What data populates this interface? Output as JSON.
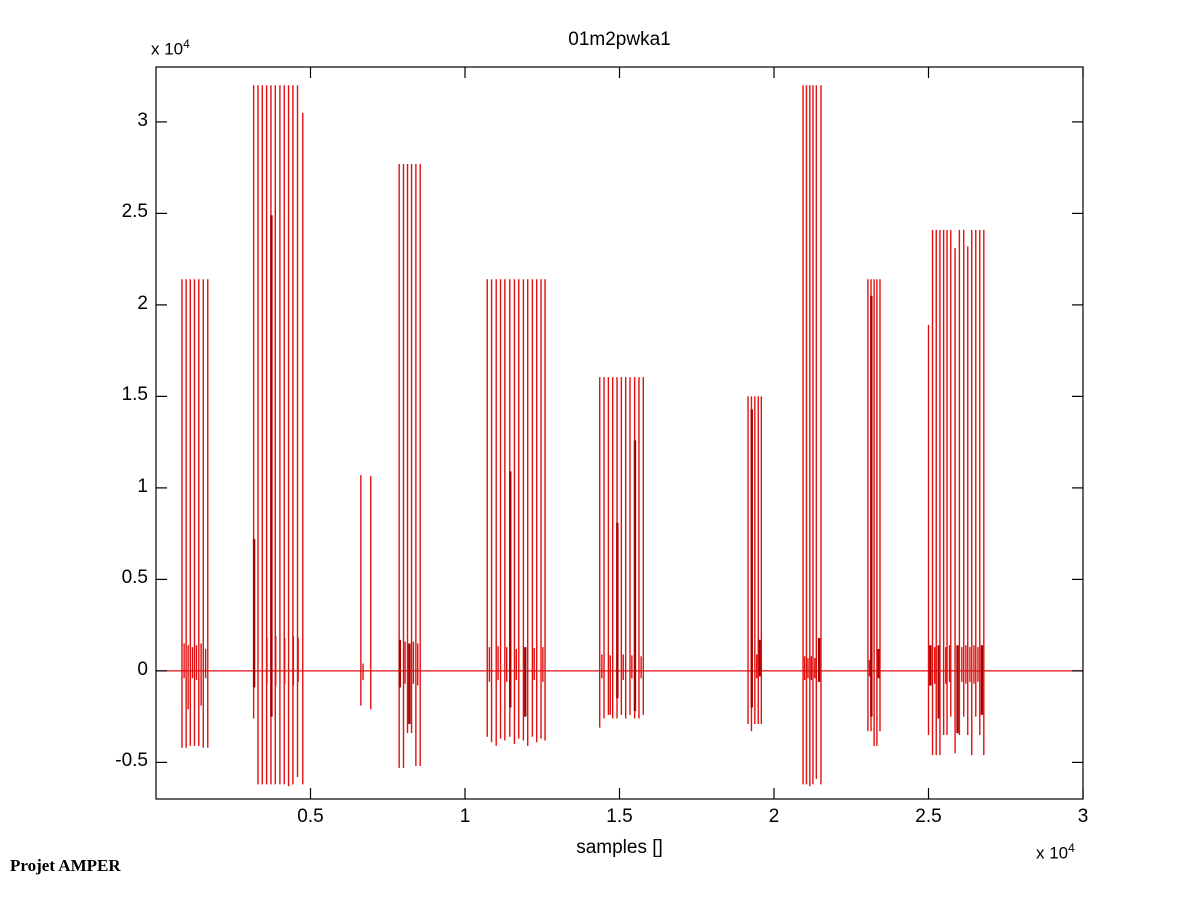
{
  "page": {
    "background": "#ffffff",
    "footer": "Projet AMPER"
  },
  "chart_data": {
    "type": "line",
    "subtype": "spike-waveform (MATLAB plot of audio signal amplitude vs sample index)",
    "title": "01m2pwka1",
    "xlabel": "samples []",
    "ylabel": "",
    "scale_label": {
      "prefix": "x 10",
      "exponent": "4"
    },
    "xlim": [
      0,
      30000
    ],
    "ylim": [
      -7000,
      33000
    ],
    "grid": false,
    "legend": "none",
    "xtick_values": [
      5000,
      10000,
      15000,
      20000,
      25000,
      30000
    ],
    "xtick_labels": [
      "0.5",
      "1",
      "1.5",
      "2",
      "2.5",
      "3"
    ],
    "ytick_values": [
      -5000,
      0,
      5000,
      10000,
      15000,
      20000,
      25000,
      30000
    ],
    "ytick_labels": [
      "-0.5",
      "0",
      "0.5",
      "1",
      "1.5",
      "2",
      "2.5",
      "3"
    ],
    "colors": {
      "line": "#e01010",
      "line_dark": "#a80000",
      "axis": "#000000",
      "background": "#ffffff"
    },
    "baseline": 0,
    "spike_format": "[x_sample, y_max, y_min, optional 2 = thick/dark overlapped stroke]",
    "spikes": [
      [
        840,
        21400,
        -4200
      ],
      [
        975,
        21400,
        -4200
      ],
      [
        1110,
        21400,
        -4100
      ],
      [
        1245,
        21400,
        -4100
      ],
      [
        1385,
        21400,
        -4100
      ],
      [
        1530,
        21400,
        -4200
      ],
      [
        1675,
        21400,
        -4200
      ],
      [
        910,
        1500,
        -400
      ],
      [
        1040,
        1400,
        -2100
      ],
      [
        1180,
        1300,
        -400
      ],
      [
        1310,
        1400,
        -500
      ],
      [
        1460,
        1500,
        -1900
      ],
      [
        1605,
        1200,
        -400
      ],
      [
        3160,
        32000,
        -2600
      ],
      [
        3175,
        7200,
        -900,
        2
      ],
      [
        3300,
        32000,
        -6200
      ],
      [
        3440,
        32000,
        -6200
      ],
      [
        3580,
        32000,
        -6200
      ],
      [
        3590,
        1800,
        -700
      ],
      [
        3720,
        32000,
        -6200
      ],
      [
        3735,
        24900,
        -2500,
        2
      ],
      [
        3860,
        32000,
        -6200
      ],
      [
        3875,
        1900,
        -800
      ],
      [
        4010,
        32000,
        -6200
      ],
      [
        4150,
        32000,
        -6200
      ],
      [
        4165,
        1800,
        -700
      ],
      [
        4290,
        32000,
        -6300
      ],
      [
        4430,
        32000,
        -6200
      ],
      [
        4445,
        1900,
        -800
      ],
      [
        4580,
        32000,
        -5800
      ],
      [
        4600,
        1800,
        -600
      ],
      [
        4750,
        30500,
        -6200
      ],
      [
        6630,
        10700,
        -1900
      ],
      [
        6700,
        400,
        -500
      ],
      [
        6950,
        10650,
        -2100
      ],
      [
        7870,
        27700,
        -5300
      ],
      [
        7890,
        1700,
        -900,
        2
      ],
      [
        8010,
        27700,
        -5300
      ],
      [
        8060,
        1600,
        -700
      ],
      [
        8140,
        27700,
        -3400
      ],
      [
        8200,
        1500,
        -2900,
        2
      ],
      [
        8270,
        27700,
        -3400
      ],
      [
        8330,
        1600,
        -700
      ],
      [
        8410,
        27700,
        -5200
      ],
      [
        8470,
        1500,
        -800
      ],
      [
        8550,
        27700,
        -5200
      ],
      [
        10720,
        21400,
        -3600
      ],
      [
        10790,
        1300,
        -600
      ],
      [
        10860,
        21400,
        -3900
      ],
      [
        11010,
        21400,
        -4100
      ],
      [
        11070,
        1350,
        -500
      ],
      [
        11150,
        21400,
        -3700
      ],
      [
        11290,
        21400,
        -3800
      ],
      [
        11350,
        1300,
        -600
      ],
      [
        11450,
        21400,
        -3600
      ],
      [
        11465,
        10900,
        -2000,
        2
      ],
      [
        11600,
        21400,
        -4000
      ],
      [
        11660,
        1200,
        -500
      ],
      [
        11740,
        21400,
        -3700
      ],
      [
        11890,
        21400,
        -3800
      ],
      [
        11950,
        1300,
        -2500,
        2
      ],
      [
        12030,
        21400,
        -4100
      ],
      [
        12180,
        21400,
        -3600
      ],
      [
        12240,
        1250,
        -500
      ],
      [
        12320,
        21400,
        -3900
      ],
      [
        12460,
        21400,
        -3700
      ],
      [
        12520,
        1300,
        -600
      ],
      [
        12590,
        21400,
        -3800
      ],
      [
        14360,
        16050,
        -3100
      ],
      [
        14430,
        900,
        -400
      ],
      [
        14500,
        16050,
        -2600
      ],
      [
        14640,
        16050,
        -2400
      ],
      [
        14700,
        850,
        -2400
      ],
      [
        14780,
        16050,
        -2600
      ],
      [
        14920,
        16050,
        -2600
      ],
      [
        14930,
        8100,
        -1500,
        2
      ],
      [
        15060,
        16050,
        -2400
      ],
      [
        15120,
        900,
        -500
      ],
      [
        15200,
        16050,
        -2600
      ],
      [
        15340,
        16050,
        -2400
      ],
      [
        15400,
        850,
        -400
      ],
      [
        15490,
        16050,
        -2600
      ],
      [
        15500,
        12600,
        -2200,
        2
      ],
      [
        15630,
        16050,
        -2600
      ],
      [
        15700,
        800,
        -400
      ],
      [
        15770,
        16050,
        -2400
      ],
      [
        19160,
        15000,
        -2900
      ],
      [
        19270,
        15000,
        -3300
      ],
      [
        19280,
        14300,
        -2000,
        2
      ],
      [
        19380,
        15000,
        -2900
      ],
      [
        19440,
        900,
        -400
      ],
      [
        19490,
        15000,
        -2900
      ],
      [
        19540,
        1700,
        -300,
        2
      ],
      [
        19590,
        15000,
        -2900
      ],
      [
        20940,
        32000,
        -6200
      ],
      [
        20990,
        800,
        -500
      ],
      [
        21050,
        32000,
        -6200
      ],
      [
        21100,
        700,
        -400
      ],
      [
        21160,
        32000,
        -6300
      ],
      [
        21210,
        800,
        -500
      ],
      [
        21260,
        32000,
        -6200
      ],
      [
        21320,
        700,
        -400
      ],
      [
        21370,
        32000,
        -5900
      ],
      [
        21460,
        1800,
        -600,
        2
      ],
      [
        21520,
        32000,
        -6200
      ],
      [
        23040,
        21400,
        -3300
      ],
      [
        23090,
        600,
        -300
      ],
      [
        23140,
        21400,
        -3300
      ],
      [
        23150,
        20500,
        -2500,
        2
      ],
      [
        23240,
        21400,
        -4100
      ],
      [
        23330,
        21400,
        -4100
      ],
      [
        23390,
        1200,
        -400,
        2
      ],
      [
        23430,
        21400,
        -3300
      ],
      [
        25000,
        18900,
        -3500
      ],
      [
        25060,
        1400,
        -800,
        2
      ],
      [
        25130,
        24100,
        -4600
      ],
      [
        25200,
        1300,
        -700
      ],
      [
        25250,
        24100,
        -4600
      ],
      [
        25330,
        1400,
        -2600,
        2
      ],
      [
        25370,
        24100,
        -4600
      ],
      [
        25490,
        24100,
        -3500
      ],
      [
        25560,
        1300,
        -700
      ],
      [
        25600,
        24100,
        -3500
      ],
      [
        25680,
        1400,
        -600
      ],
      [
        25720,
        24100,
        -2500
      ],
      [
        25860,
        23100,
        -4500
      ],
      [
        25940,
        1400,
        -3400,
        2
      ],
      [
        26000,
        24100,
        -3500
      ],
      [
        26080,
        1300,
        -600
      ],
      [
        26140,
        24100,
        -2500
      ],
      [
        26210,
        1400,
        -700
      ],
      [
        26270,
        23200,
        -3500
      ],
      [
        26340,
        1300,
        -600
      ],
      [
        26400,
        24100,
        -4600
      ],
      [
        26470,
        1400,
        -700
      ],
      [
        26530,
        24100,
        -2500
      ],
      [
        26600,
        1300,
        -600
      ],
      [
        26660,
        24100,
        -3500
      ],
      [
        26730,
        1400,
        -2400,
        2
      ],
      [
        26790,
        24100,
        -4600
      ]
    ]
  }
}
